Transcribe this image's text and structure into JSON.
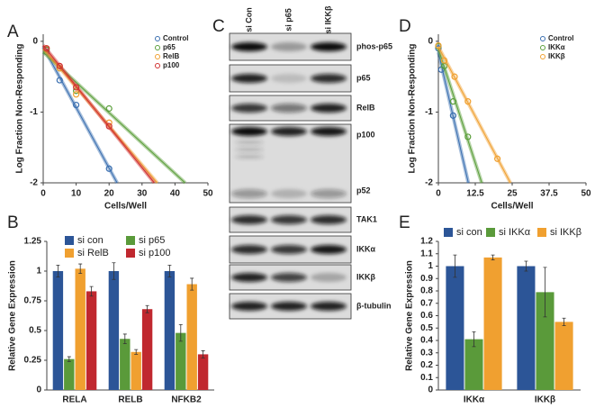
{
  "chart_data": [
    {
      "type": "scatter",
      "label": "A",
      "xlabel": "Cells/Well",
      "ylabel": "Log Fraction Non-Responding",
      "xlim": [
        0,
        50
      ],
      "xticks": [
        0,
        10,
        20,
        30,
        40,
        50
      ],
      "ylim": [
        -2,
        0.1
      ],
      "yticks": [
        0,
        -1,
        -2
      ],
      "series": [
        {
          "name": "Control",
          "color": "#3a6fb0",
          "x": [
            1,
            5,
            10,
            20
          ],
          "values": [
            -0.15,
            -0.55,
            -0.9,
            -1.8
          ]
        },
        {
          "name": "p65",
          "color": "#5a9e3a",
          "x": [
            1,
            5,
            10,
            20
          ],
          "values": [
            -0.12,
            -0.38,
            -0.7,
            -0.95
          ]
        },
        {
          "name": "RelB",
          "color": "#f0a030",
          "x": [
            1,
            5,
            10,
            20
          ],
          "values": [
            -0.1,
            -0.38,
            -0.75,
            -1.15
          ]
        },
        {
          "name": "p100",
          "color": "#d03030",
          "x": [
            1,
            5,
            10,
            20
          ],
          "values": [
            -0.1,
            -0.35,
            -0.65,
            -1.2
          ]
        }
      ]
    },
    {
      "type": "bar",
      "label": "B",
      "ylabel": "Relative Gene Expression",
      "categories": [
        "RELA",
        "RELB",
        "NFKB2"
      ],
      "ylim": [
        0,
        1.25
      ],
      "yticks": [
        0,
        0.25,
        0.5,
        0.75,
        1,
        1.25
      ],
      "series": [
        {
          "name": "si con",
          "color": "#2c5597",
          "values": [
            1,
            1,
            1
          ],
          "error": [
            0.05,
            0.07,
            0.05
          ]
        },
        {
          "name": "si p65",
          "color": "#5a9a3a",
          "values": [
            0.26,
            0.43,
            0.48
          ],
          "error": [
            0.02,
            0.04,
            0.07
          ]
        },
        {
          "name": "si RelB",
          "color": "#f0a030",
          "values": [
            1.02,
            0.32,
            0.89
          ],
          "error": [
            0.04,
            0.02,
            0.05
          ]
        },
        {
          "name": "si p100",
          "color": "#c0282f",
          "values": [
            0.83,
            0.68,
            0.3
          ],
          "error": [
            0.04,
            0.03,
            0.03
          ]
        }
      ]
    },
    {
      "type": "scatter",
      "label": "D",
      "xlabel": "Cells/Well",
      "ylabel": "Log Fraction Non-Responding",
      "xlim": [
        0,
        50
      ],
      "xticks": [
        0,
        12.5,
        25,
        37.5,
        50
      ],
      "ylim": [
        -2,
        0.1
      ],
      "yticks": [
        0,
        -1,
        -2
      ],
      "series": [
        {
          "name": "Control",
          "color": "#3a6fb0",
          "x": [
            0,
            1,
            5
          ],
          "values": [
            -0.1,
            -0.4,
            -1.05
          ]
        },
        {
          "name": "IKKα",
          "color": "#5a9e3a",
          "x": [
            0,
            2,
            5,
            10
          ],
          "values": [
            -0.07,
            -0.35,
            -0.85,
            -1.35
          ]
        },
        {
          "name": "IKKβ",
          "color": "#f0a030",
          "x": [
            0,
            2,
            5.5,
            10,
            20
          ],
          "values": [
            -0.06,
            -0.27,
            -0.5,
            -0.85,
            -1.66
          ]
        }
      ]
    },
    {
      "type": "bar",
      "label": "E",
      "ylabel": "Relative Gene Expression",
      "categories": [
        "IKKα",
        "IKKβ"
      ],
      "ylim": [
        0,
        1.2
      ],
      "yticks": [
        0,
        0.1,
        0.2,
        0.3,
        0.4,
        0.5,
        0.6,
        0.7,
        0.8,
        0.9,
        1,
        1.1,
        1.2
      ],
      "series": [
        {
          "name": "si con",
          "color": "#2c5597",
          "values": [
            1,
            1
          ],
          "error": [
            0.09,
            0.04
          ]
        },
        {
          "name": "si IKKα",
          "color": "#5a9a3a",
          "values": [
            0.41,
            0.79
          ],
          "error": [
            0.06,
            0.2
          ]
        },
        {
          "name": "si IKKβ",
          "color": "#f0a030",
          "values": [
            1.07,
            0.55
          ],
          "error": [
            0.02,
            0.03
          ]
        }
      ]
    }
  ],
  "blot": {
    "label": "C",
    "lanes": [
      "si Con",
      "si p65",
      "si IKKβ"
    ],
    "bands": [
      "phos-p65",
      "p65",
      "RelB",
      "p100",
      "p52",
      "TAK1",
      "IKKα",
      "IKKβ",
      "β-tubulin"
    ]
  }
}
